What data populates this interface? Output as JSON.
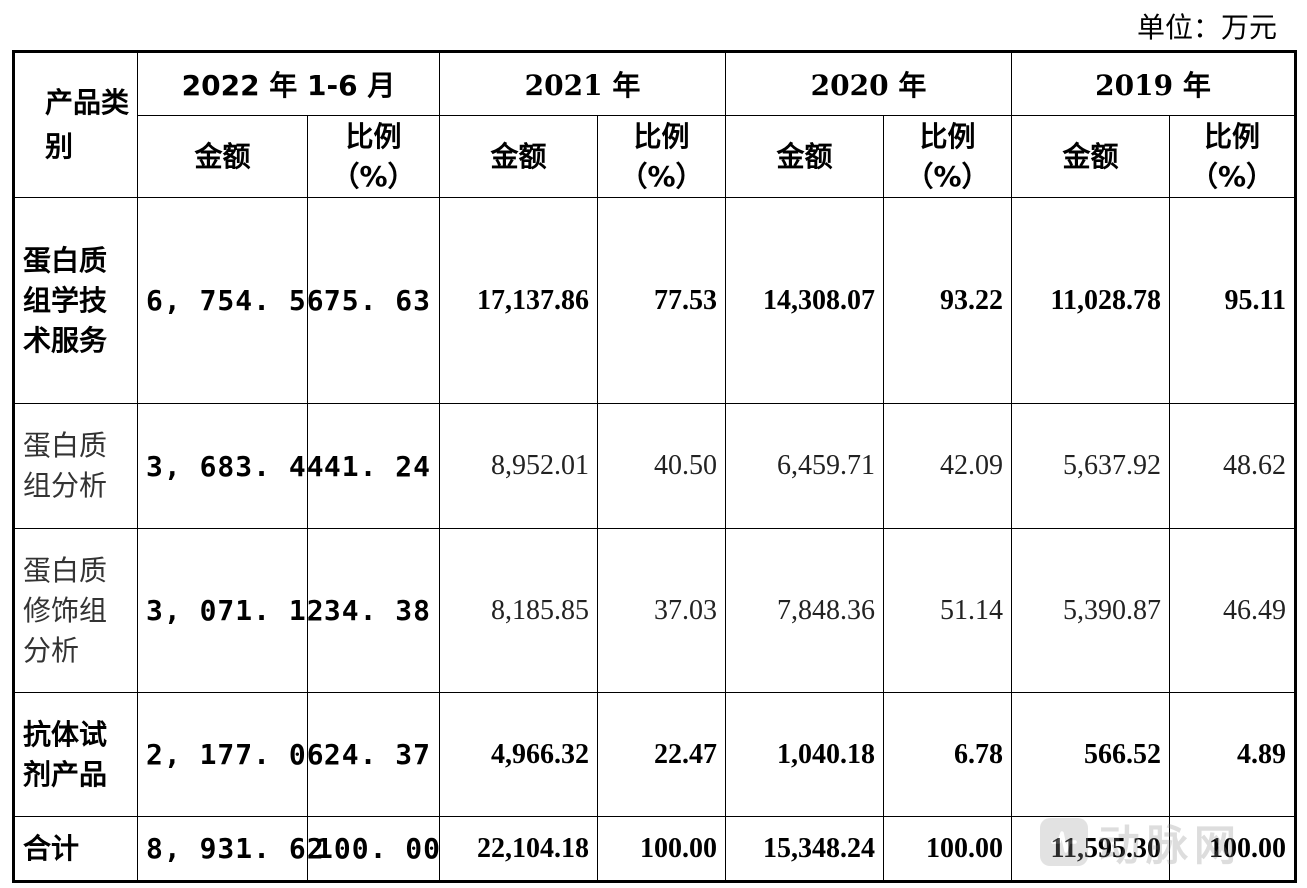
{
  "unit_label": "单位：万元",
  "header": {
    "category": "产品类别",
    "periods": [
      "2022 年 1-6 月",
      "2021 年",
      "2020 年",
      "2019 年"
    ],
    "amount": "金额",
    "ratio": "比例（%）"
  },
  "rows": [
    {
      "category": "蛋白质组学技术服务",
      "values": [
        "6, 754. 56",
        "75. 63",
        "17,137.86",
        "77.53",
        "14,308.07",
        "93.22",
        "11,028.78",
        "95.11"
      ]
    },
    {
      "category": "蛋白质组分析",
      "values": [
        "3, 683. 44",
        "41. 24",
        "8,952.01",
        "40.50",
        "6,459.71",
        "42.09",
        "5,637.92",
        "48.62"
      ]
    },
    {
      "category": "蛋白质修饰组分析",
      "values": [
        "3, 071. 12",
        "34. 38",
        "8,185.85",
        "37.03",
        "7,848.36",
        "51.14",
        "5,390.87",
        "46.49"
      ]
    },
    {
      "category": "抗体试剂产品",
      "values": [
        "2, 177. 06",
        "24. 37",
        "4,966.32",
        "22.47",
        "1,040.18",
        "6.78",
        "566.52",
        "4.89"
      ]
    },
    {
      "category": "合计",
      "values": [
        "8, 931. 62",
        "100. 00",
        "22,104.18",
        "100.00",
        "15,348.24",
        "100.00",
        "11,595.30",
        "100.00"
      ]
    }
  ],
  "watermark": {
    "text": "动脉网",
    "icon": "dongmai-logo-icon"
  }
}
